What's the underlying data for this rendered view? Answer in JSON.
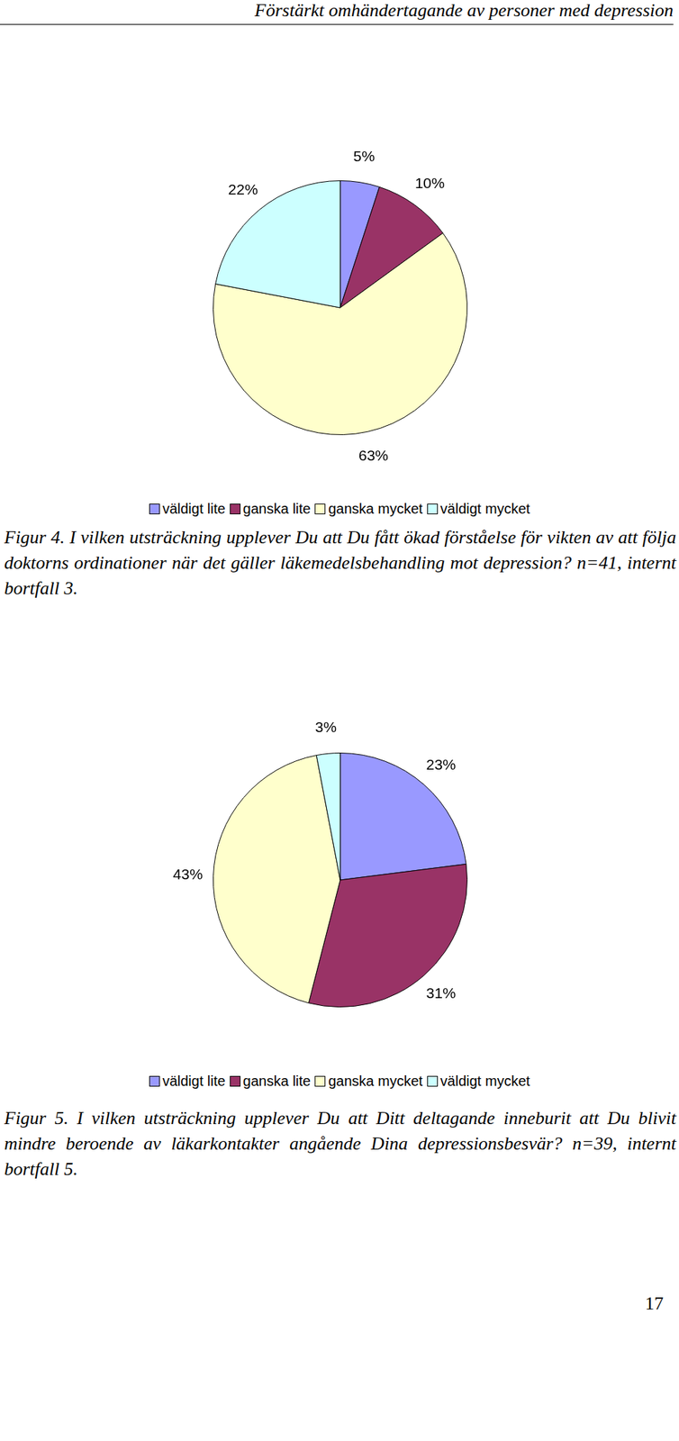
{
  "header": "Förstärkt omhändertagande av personer med depression",
  "chart_data": [
    {
      "type": "pie",
      "categories": [
        "väldigt lite",
        "ganska lite",
        "ganska mycket",
        "väldigt mycket"
      ],
      "values": [
        5,
        10,
        63,
        22
      ],
      "value_labels": [
        "5%",
        "10%",
        "63%",
        "22%"
      ],
      "colors": [
        "#9999ff",
        "#993366",
        "#ffffcc",
        "#ccffff"
      ],
      "data_labels": true,
      "legend": "bottom",
      "title": "Figur 4. I vilken utsträckning upplever Du att Du fått ökad förståelse för vikten av att följa doktorns ordinationer när det gäller läkemedelsbehandling mot depression? n=41, internt bortfall 3."
    },
    {
      "type": "pie",
      "categories": [
        "väldigt lite",
        "ganska lite",
        "ganska mycket",
        "väldigt mycket"
      ],
      "values": [
        23,
        31,
        43,
        3
      ],
      "value_labels": [
        "23%",
        "31%",
        "43%",
        "3%"
      ],
      "colors": [
        "#9999ff",
        "#993366",
        "#ffffcc",
        "#ccffff"
      ],
      "data_labels": true,
      "legend": "bottom",
      "title": "Figur 5. I vilken utsträckning upplever Du att Ditt deltagande inneburit att Du blivit mindre beroende av läkarkontakter angående Dina depressionsbesvär? n=39, internt bortfall 5."
    }
  ],
  "page_number": "17"
}
